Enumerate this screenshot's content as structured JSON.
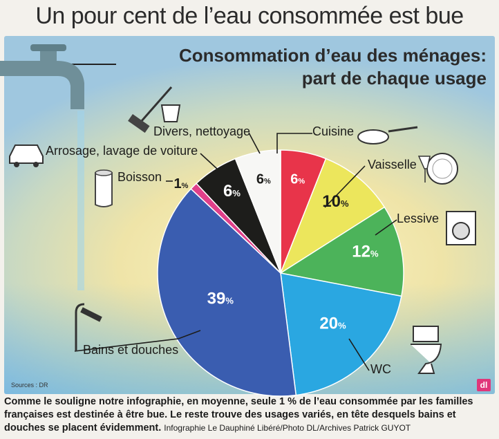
{
  "headline": "Un pour cent de l’eau consommée est bue",
  "title_line1": "Consommation d’eau des ménages:",
  "title_line2": "part de chaque usage",
  "sources": "Sources : DR",
  "logo": "dl",
  "caption_text": "Comme le souligne notre infographie, en moyenne, seule 1 % de l’eau consommée par les familles françaises est destinée à être bue. Le reste trouve des usages variés, en tête desquels bains et douches se placent évidemment.",
  "caption_credit": "Infographie Le Dauphiné Libéré/Photo DL/Archives Patrick GUYOT",
  "colors": {
    "Cuisine": "#e8344a",
    "Vaisselle": "#ece65c",
    "Lessive": "#4cb35a",
    "WC": "#2aa7e1",
    "Bains et douches": "#3a5db0",
    "Boisson": "#e0408a",
    "Arrosage, lavage de voiture": "#1d1d1b",
    "Divers, nettoyage": "#f7f7f5"
  },
  "icons": [
    "faucet-icon",
    "broom-bucket-icon",
    "car-icon",
    "glass-icon",
    "pan-icon",
    "plate-glass-icon",
    "washing-machine-icon",
    "shower-icon",
    "toilet-icon"
  ],
  "chart_data": {
    "type": "pie",
    "title": "Consommation d’eau des ménages: part de chaque usage",
    "start": "top, clockwise from Cuisine",
    "unit": "%",
    "slices": [
      {
        "label": "Cuisine",
        "value": 6
      },
      {
        "label": "Vaisselle",
        "value": 10
      },
      {
        "label": "Lessive",
        "value": 12
      },
      {
        "label": "WC",
        "value": 20
      },
      {
        "label": "Bains et douches",
        "value": 39
      },
      {
        "label": "Boisson",
        "value": 1
      },
      {
        "label": "Arrosage, lavage de voiture",
        "value": 6
      },
      {
        "label": "Divers, nettoyage",
        "value": 6
      }
    ]
  }
}
